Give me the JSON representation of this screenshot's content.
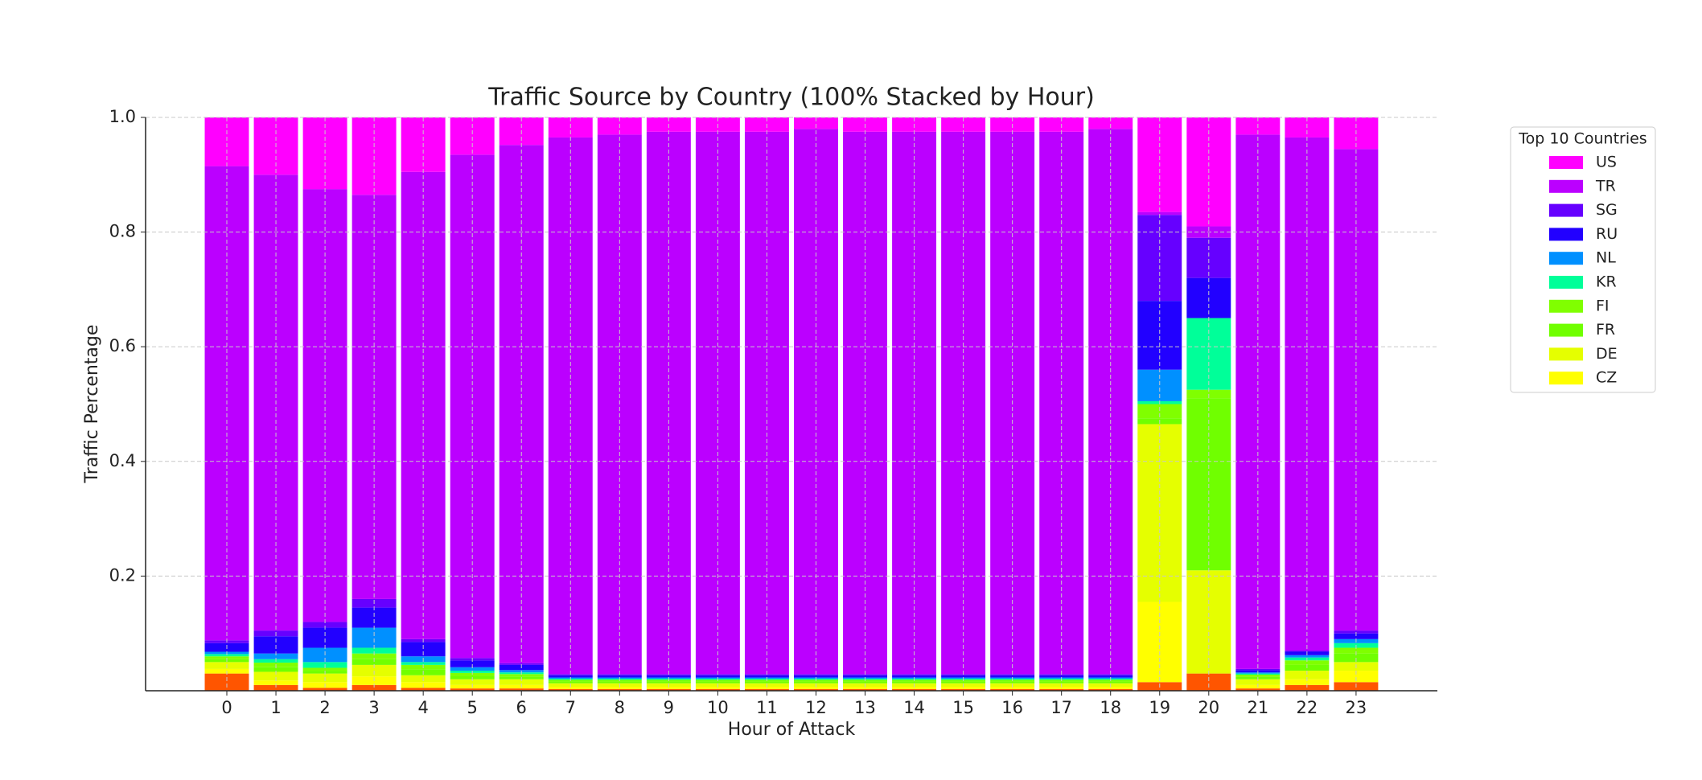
{
  "chart_data": {
    "type": "bar",
    "stacked": true,
    "title": "Traffic Source by Country (100% Stacked by Hour)",
    "x_label": "Hour of Attack",
    "y_label": "Traffic Percentage",
    "legend_title": "Top 10 Countries",
    "legend_position": "outside-right",
    "grid": true,
    "categories": [
      "0",
      "1",
      "2",
      "3",
      "4",
      "5",
      "6",
      "7",
      "8",
      "9",
      "10",
      "11",
      "12",
      "13",
      "14",
      "15",
      "16",
      "17",
      "18",
      "19",
      "20",
      "21",
      "22",
      "23"
    ],
    "ylim": [
      0,
      1
    ],
    "yticks": [
      0.2,
      0.4,
      0.6,
      0.8,
      {
        "value": 1,
        "label": "1.0"
      }
    ],
    "series": [
      {
        "color": "#ff5500",
        "values": [
          0.03,
          0.01,
          0.005,
          0.01,
          0.005,
          0.004,
          0.004,
          0.003,
          0.003,
          0.003,
          0.003,
          0.003,
          0.003,
          0.003,
          0.003,
          0.003,
          0.003,
          0.003,
          0.003,
          0.015,
          0.03,
          0.004,
          0.01,
          0.015
        ]
      },
      {
        "name": "CZ",
        "color": "#ffff00",
        "values": [
          0.008,
          0.008,
          0.01,
          0.015,
          0.01,
          0.006,
          0.006,
          0.004,
          0.004,
          0.004,
          0.004,
          0.004,
          0.004,
          0.004,
          0.004,
          0.004,
          0.004,
          0.004,
          0.004,
          0.14,
          0,
          0.006,
          0.01,
          0.02
        ]
      },
      {
        "name": "DE",
        "color": "#e5ff00",
        "values": [
          0.012,
          0.015,
          0.015,
          0.02,
          0.012,
          0.01,
          0.01,
          0.006,
          0.006,
          0.006,
          0.006,
          0.006,
          0.006,
          0.006,
          0.006,
          0.006,
          0.006,
          0.006,
          0.006,
          0.31,
          0.18,
          0.01,
          0.015,
          0.015
        ]
      },
      {
        "name": "FR",
        "color": "#70ff00",
        "values": [
          0.005,
          0.008,
          0.005,
          0.01,
          0.01,
          0.006,
          0.005,
          0.003,
          0.003,
          0.003,
          0.003,
          0.003,
          0.003,
          0.003,
          0.003,
          0.003,
          0.003,
          0.003,
          0.003,
          0.01,
          0.3,
          0.004,
          0.01,
          0.015
        ]
      },
      {
        "name": "FI",
        "color": "#80ff00",
        "values": [
          0.005,
          0.008,
          0.005,
          0.01,
          0.008,
          0.005,
          0.004,
          0.003,
          0.003,
          0.003,
          0.003,
          0.003,
          0.003,
          0.003,
          0.003,
          0.003,
          0.003,
          0.003,
          0.003,
          0.025,
          0.015,
          0.004,
          0.008,
          0.01
        ]
      },
      {
        "name": "KR",
        "color": "#00ff99",
        "values": [
          0.004,
          0.006,
          0.01,
          0.01,
          0.005,
          0.004,
          0.003,
          0.002,
          0.002,
          0.002,
          0.002,
          0.002,
          0.002,
          0.002,
          0.002,
          0.002,
          0.002,
          0.002,
          0.002,
          0.005,
          0.125,
          0.002,
          0.005,
          0.008
        ]
      },
      {
        "name": "NL",
        "color": "#0090ff",
        "values": [
          0.004,
          0.01,
          0.025,
          0.035,
          0.01,
          0.006,
          0.004,
          0.002,
          0.002,
          0.002,
          0.002,
          0.002,
          0.002,
          0.002,
          0.002,
          0.002,
          0.002,
          0.002,
          0.002,
          0.055,
          0,
          0.002,
          0.004,
          0.007
        ]
      },
      {
        "name": "RU",
        "color": "#2200ff",
        "values": [
          0.015,
          0.03,
          0.035,
          0.035,
          0.025,
          0.012,
          0.009,
          0.004,
          0.004,
          0.004,
          0.004,
          0.004,
          0.004,
          0.004,
          0.004,
          0.004,
          0.004,
          0.004,
          0.004,
          0.12,
          0.07,
          0.004,
          0.006,
          0.01
        ]
      },
      {
        "name": "SG",
        "color": "#6600ff",
        "values": [
          0.005,
          0.01,
          0.01,
          0.015,
          0.005,
          0.004,
          0.003,
          0.002,
          0.002,
          0.002,
          0.002,
          0.002,
          0.002,
          0.002,
          0.002,
          0.002,
          0.002,
          0.002,
          0.002,
          0.15,
          0.07,
          0.002,
          0.002,
          0.005
        ]
      },
      {
        "name": "TR",
        "color": "#bb00ff",
        "values": [
          0.827,
          0.795,
          0.755,
          0.705,
          0.815,
          0.878,
          0.904,
          0.936,
          0.941,
          0.946,
          0.946,
          0.946,
          0.951,
          0.946,
          0.946,
          0.946,
          0.946,
          0.946,
          0.951,
          0.005,
          0.02,
          0.932,
          0.895,
          0.84
        ]
      },
      {
        "name": "US",
        "color": "#ff00ff",
        "values": [
          0.085,
          0.1,
          0.125,
          0.135,
          0.095,
          0.065,
          0.048,
          0.035,
          0.03,
          0.025,
          0.025,
          0.025,
          0.02,
          0.025,
          0.025,
          0.025,
          0.025,
          0.025,
          0.02,
          0.165,
          0.19,
          0.03,
          0.035,
          0.055
        ]
      }
    ]
  }
}
